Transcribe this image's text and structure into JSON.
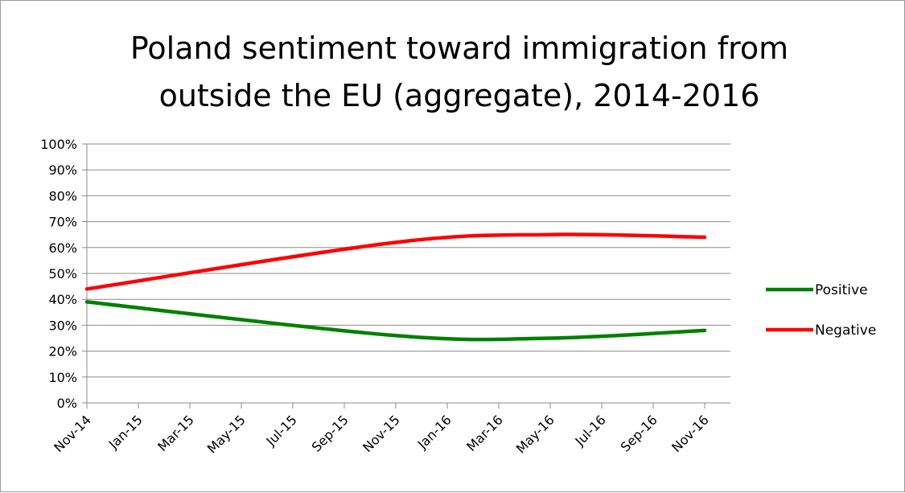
{
  "chart_data": {
    "type": "line",
    "title": "Poland sentiment toward immigration from outside the EU (aggregate), 2014-2016",
    "title_lines": [
      "Poland sentiment toward immigration from",
      "outside the EU (aggregate), 2014-2016"
    ],
    "xlabel": "",
    "ylabel": "",
    "categories": [
      "Nov-14",
      "Jan-15",
      "Mar-15",
      "May-15",
      "Jul-15",
      "Sep-15",
      "Nov-15",
      "Jan-16",
      "Mar-16",
      "May-16",
      "Jul-16",
      "Sep-16",
      "Nov-16"
    ],
    "y_ticks": [
      "0%",
      "10%",
      "20%",
      "30%",
      "40%",
      "50%",
      "60%",
      "70%",
      "80%",
      "90%",
      "100%"
    ],
    "ylim": [
      0,
      100
    ],
    "y_unit": "%",
    "grid": true,
    "legend_position": "right",
    "series": [
      {
        "name": "Positive",
        "color": "#008000",
        "points": [
          {
            "x": "Nov-14",
            "y": 39
          },
          {
            "x": "Nov-15",
            "y": 26
          },
          {
            "x": "May-16",
            "y": 25
          },
          {
            "x": "Nov-16",
            "y": 28
          }
        ]
      },
      {
        "name": "Negative",
        "color": "#ff0000",
        "points": [
          {
            "x": "Nov-14",
            "y": 44
          },
          {
            "x": "Nov-15",
            "y": 62
          },
          {
            "x": "May-16",
            "y": 65
          },
          {
            "x": "Nov-16",
            "y": 64
          }
        ]
      }
    ]
  }
}
